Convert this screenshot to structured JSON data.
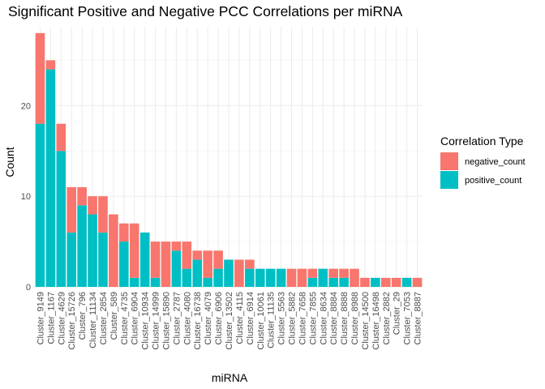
{
  "chart_data": {
    "type": "bar",
    "stacked": true,
    "title": "Significant Positive and Negative PCC Correlations per miRNA",
    "xlabel": "miRNA",
    "ylabel": "Count",
    "ylim": [
      0,
      28
    ],
    "yticks": [
      0,
      10,
      20
    ],
    "grid": true,
    "legend": {
      "title": "Correlation Type",
      "placement": "right"
    },
    "categories": [
      "Cluster_9149",
      "Cluster_1167",
      "Cluster_4629",
      "Cluster_15726",
      "Cluster_796",
      "Cluster_11134",
      "Cluster_2854",
      "Cluster_589",
      "Cluster_4735",
      "Cluster_6904",
      "Cluster_10934",
      "Cluster_14999",
      "Cluster_15890",
      "Cluster_2787",
      "Cluster_4080",
      "Cluster_16738",
      "Cluster_4079",
      "Cluster_6906",
      "Cluster_13502",
      "Cluster_4115",
      "Cluster_6914",
      "Cluster_10061",
      "Cluster_11135",
      "Cluster_5563",
      "Cluster_5882",
      "Cluster_7658",
      "Cluster_7855",
      "Cluster_8634",
      "Cluster_8884",
      "Cluster_8888",
      "Cluster_8988",
      "Cluster_14500",
      "Cluster_16498",
      "Cluster_2882",
      "Cluster_29",
      "Cluster_7053",
      "Cluster_8887"
    ],
    "series": [
      {
        "name": "negative_count",
        "color": "#F8766D",
        "values": [
          10,
          1,
          3,
          5,
          2,
          2,
          4,
          8,
          2,
          6,
          0,
          4,
          5,
          1,
          3,
          1,
          3,
          2,
          0,
          3,
          1,
          0,
          0,
          0,
          2,
          2,
          1,
          0,
          1,
          1,
          2,
          1,
          0,
          1,
          1,
          0,
          1
        ]
      },
      {
        "name": "positive_count",
        "color": "#00BFC4",
        "values": [
          18,
          24,
          15,
          6,
          9,
          8,
          6,
          0,
          5,
          1,
          6,
          1,
          0,
          4,
          2,
          3,
          1,
          2,
          3,
          0,
          2,
          2,
          2,
          2,
          0,
          0,
          1,
          2,
          1,
          1,
          0,
          0,
          1,
          0,
          0,
          1,
          0
        ]
      }
    ]
  }
}
